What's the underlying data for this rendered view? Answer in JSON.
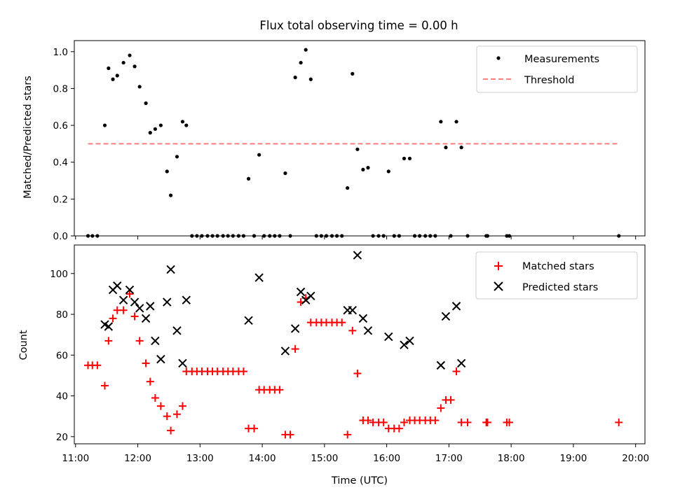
{
  "colors": {
    "measure": "#000000",
    "threshold": "#ff7f7f",
    "matched": "#ff0000",
    "predicted": "#000000"
  },
  "chart_data": [
    {
      "type": "scatter",
      "title": "Flux total observing time = 0.00 h",
      "xlabel": "",
      "ylabel": "Matched/Predicted stars",
      "xlim": [
        10.98,
        20.15
      ],
      "ylim": [
        0.0,
        1.06
      ],
      "yticks": [
        0.0,
        0.2,
        0.4,
        0.6,
        0.8,
        1.0
      ],
      "ytick_labels": [
        "0.0",
        "0.2",
        "0.4",
        "0.6",
        "0.8",
        "1.0"
      ],
      "legend_position": "top-right",
      "series": [
        {
          "name": "Measurements",
          "kind": "scatter",
          "x": [
            11.2,
            11.27,
            11.35,
            11.47,
            11.53,
            11.6,
            11.67,
            11.77,
            11.87,
            11.95,
            12.03,
            12.13,
            12.2,
            12.28,
            12.37,
            12.47,
            12.53,
            12.63,
            12.72,
            12.78,
            12.87,
            12.95,
            13.03,
            13.12,
            13.2,
            13.28,
            13.37,
            13.45,
            13.53,
            13.62,
            13.7,
            13.78,
            13.87,
            13.95,
            14.03,
            14.12,
            14.2,
            14.28,
            14.37,
            14.45,
            14.53,
            14.62,
            14.7,
            14.78,
            14.87,
            14.95,
            15.03,
            15.12,
            15.2,
            15.28,
            15.37,
            15.45,
            15.53,
            15.62,
            15.7,
            15.78,
            15.87,
            15.95,
            16.03,
            16.12,
            16.2,
            16.28,
            16.37,
            16.45,
            16.53,
            16.62,
            16.7,
            16.78,
            16.87,
            16.95,
            17.03,
            17.12,
            17.2,
            17.3,
            17.6,
            17.62,
            17.93,
            17.97,
            19.73
          ],
          "y": [
            0.0,
            0.0,
            0.0,
            0.6,
            0.91,
            0.85,
            0.87,
            0.94,
            0.98,
            0.92,
            0.81,
            0.72,
            0.56,
            0.58,
            0.6,
            0.35,
            0.22,
            0.43,
            0.62,
            0.6,
            0.0,
            0.0,
            0.0,
            0.0,
            0.0,
            0.0,
            0.0,
            0.0,
            0.0,
            0.0,
            0.0,
            0.31,
            0.0,
            0.44,
            0.0,
            0.0,
            0.0,
            0.0,
            0.34,
            0.0,
            0.86,
            0.94,
            1.01,
            0.85,
            0.0,
            0.0,
            0.0,
            0.0,
            0.0,
            0.0,
            0.26,
            0.88,
            0.47,
            0.36,
            0.37,
            0.0,
            0.0,
            0.0,
            0.35,
            0.0,
            0.0,
            0.42,
            0.42,
            0.0,
            0.0,
            0.0,
            0.0,
            0.0,
            0.62,
            0.48,
            0.0,
            0.62,
            0.48,
            0.0,
            0.0,
            0.0,
            0.0,
            0.0,
            0.0
          ]
        },
        {
          "name": "Threshold",
          "kind": "dashed-line",
          "x": [
            11.2,
            19.73
          ],
          "y": [
            0.5,
            0.5
          ]
        }
      ]
    },
    {
      "type": "scatter",
      "title": "",
      "xlabel": "Time (UTC)",
      "ylabel": "Count",
      "xlim": [
        10.98,
        20.15
      ],
      "ylim": [
        16.5,
        114
      ],
      "xticks": [
        11,
        12,
        13,
        14,
        15,
        16,
        17,
        18,
        19,
        20
      ],
      "xtick_labels": [
        "11:00",
        "12:00",
        "13:00",
        "14:00",
        "15:00",
        "16:00",
        "17:00",
        "18:00",
        "19:00",
        "20:00"
      ],
      "yticks": [
        20,
        40,
        60,
        80,
        100
      ],
      "ytick_labels": [
        "20",
        "40",
        "60",
        "80",
        "100"
      ],
      "legend_position": "top-right",
      "series": [
        {
          "name": "Matched stars",
          "kind": "plus",
          "x": [
            11.2,
            11.27,
            11.35,
            11.47,
            11.53,
            11.6,
            11.67,
            11.77,
            11.87,
            11.95,
            12.03,
            12.13,
            12.2,
            12.28,
            12.37,
            12.47,
            12.53,
            12.63,
            12.72,
            12.78,
            12.87,
            12.95,
            13.03,
            13.12,
            13.2,
            13.28,
            13.37,
            13.45,
            13.53,
            13.62,
            13.7,
            13.78,
            13.87,
            13.95,
            14.03,
            14.12,
            14.2,
            14.28,
            14.37,
            14.45,
            14.53,
            14.62,
            14.7,
            14.78,
            14.87,
            14.95,
            15.03,
            15.12,
            15.2,
            15.28,
            15.37,
            15.45,
            15.53,
            15.62,
            15.7,
            15.78,
            15.87,
            15.95,
            16.03,
            16.12,
            16.2,
            16.28,
            16.37,
            16.45,
            16.53,
            16.62,
            16.7,
            16.78,
            16.87,
            16.95,
            17.03,
            17.12,
            17.2,
            17.3,
            17.6,
            17.62,
            17.93,
            17.97,
            19.73
          ],
          "y": [
            55,
            55,
            55,
            45,
            67,
            78,
            82,
            82,
            90,
            79,
            67,
            56,
            47,
            39,
            35,
            30,
            23,
            31,
            35,
            52,
            52,
            52,
            52,
            52,
            52,
            52,
            52,
            52,
            52,
            52,
            52,
            24,
            24,
            43,
            43,
            43,
            43,
            43,
            21,
            21,
            63,
            86,
            88,
            76,
            76,
            76,
            76,
            76,
            76,
            76,
            21,
            72,
            51,
            28,
            28,
            27,
            27,
            27,
            24,
            24,
            24,
            27,
            28,
            28,
            28,
            28,
            28,
            28,
            34,
            38,
            38,
            52,
            27,
            27,
            27,
            27,
            27,
            27,
            27
          ]
        },
        {
          "name": "Predicted stars",
          "kind": "x",
          "x": [
            11.47,
            11.53,
            11.6,
            11.67,
            11.77,
            11.87,
            11.95,
            12.03,
            12.13,
            12.2,
            12.28,
            12.37,
            12.47,
            12.53,
            12.63,
            12.72,
            12.78,
            13.78,
            13.95,
            14.37,
            14.53,
            14.62,
            14.7,
            14.78,
            15.37,
            15.45,
            15.53,
            15.62,
            15.7,
            16.03,
            16.28,
            16.37,
            16.87,
            16.95,
            17.12,
            17.2
          ],
          "y": [
            75,
            74,
            92,
            94,
            87,
            92,
            86,
            83,
            78,
            84,
            67,
            58,
            86,
            102,
            72,
            56,
            87,
            77,
            98,
            62,
            73,
            91,
            87,
            89,
            82,
            82,
            109,
            78,
            72,
            69,
            65,
            67,
            55,
            79,
            84,
            56
          ]
        }
      ]
    }
  ]
}
